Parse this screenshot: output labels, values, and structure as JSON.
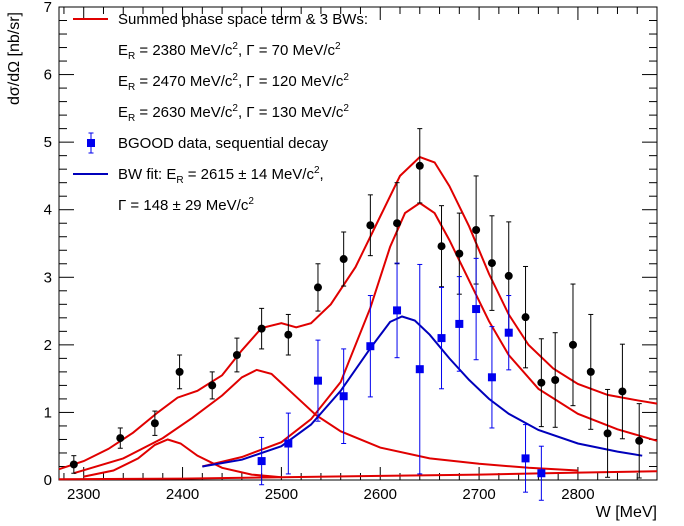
{
  "chart_data": {
    "type": "scatter",
    "xlabel": "W [MeV]",
    "ylabel": "dσ/dΩ [nb/sr]",
    "xlim": [
      2275,
      2880
    ],
    "ylim": [
      0,
      7
    ],
    "x_ticks": [
      2300,
      2400,
      2500,
      2600,
      2700,
      2800
    ],
    "y_ticks": [
      0,
      1,
      2,
      3,
      4,
      5,
      6,
      7
    ],
    "grid": false,
    "legend_position": "top-left",
    "legend": [
      {
        "kind": "line",
        "color": "#e00000",
        "lines": [
          {
            "text": "Summed phase space term & 3 BWs:"
          },
          {
            "text": "E",
            "sub": "R",
            "rest": " = 2380 MeV/c",
            "sup": "2",
            "tail": ", Γ = 70 MeV/c",
            "sup2": "2"
          },
          {
            "text": "E",
            "sub": "R",
            "rest": " = 2470 MeV/c",
            "sup": "2",
            "tail": ", Γ = 120 MeV/c",
            "sup2": "2"
          },
          {
            "text": "E",
            "sub": "R",
            "rest": " = 2630 MeV/c",
            "sup": "2",
            "tail": ", Γ = 130 MeV/c",
            "sup2": "2"
          }
        ]
      },
      {
        "kind": "marker",
        "color": "#0000ee",
        "lines": [
          {
            "text": "BGOOD data, sequential decay"
          }
        ]
      },
      {
        "kind": "line",
        "color": "#0000bb",
        "lines": [
          {
            "text": "BW fit: E",
            "sub": "R",
            "rest": " = 2615 ± 14 MeV/c",
            "sup": "2",
            "tail": ",",
            "sup2": ""
          },
          {
            "text": "Γ = 148 ± 29 MeV/c",
            "sup": "2"
          }
        ]
      }
    ],
    "series": [
      {
        "kind": "points",
        "color": "#000000",
        "marker": "circle",
        "points": [
          {
            "x": 2290,
            "y": 0.23,
            "err": 0.13
          },
          {
            "x": 2337,
            "y": 0.62,
            "err": 0.15
          },
          {
            "x": 2372,
            "y": 0.84,
            "err": 0.18
          },
          {
            "x": 2397,
            "y": 1.6,
            "err": 0.25
          },
          {
            "x": 2430,
            "y": 1.4,
            "err": 0.2
          },
          {
            "x": 2455,
            "y": 1.85,
            "err": 0.25
          },
          {
            "x": 2480,
            "y": 2.24,
            "err": 0.3
          },
          {
            "x": 2507,
            "y": 2.15,
            "err": 0.3
          },
          {
            "x": 2537,
            "y": 2.85,
            "err": 0.35
          },
          {
            "x": 2563,
            "y": 3.27,
            "err": 0.4
          },
          {
            "x": 2590,
            "y": 3.77,
            "err": 0.45
          },
          {
            "x": 2617,
            "y": 3.8,
            "err": 0.6
          },
          {
            "x": 2640,
            "y": 4.65,
            "err": 0.55
          },
          {
            "x": 2662,
            "y": 3.46,
            "err": 0.6
          },
          {
            "x": 2680,
            "y": 3.35,
            "err": 0.6
          },
          {
            "x": 2697,
            "y": 3.7,
            "err": 0.8
          },
          {
            "x": 2713,
            "y": 3.21,
            "err": 0.7
          },
          {
            "x": 2730,
            "y": 3.02,
            "err": 0.8
          },
          {
            "x": 2747,
            "y": 2.41,
            "err": 0.75
          },
          {
            "x": 2763,
            "y": 1.44,
            "err": 0.65
          },
          {
            "x": 2777,
            "y": 1.48,
            "err": 0.7
          },
          {
            "x": 2795,
            "y": 2.0,
            "err": 0.9
          },
          {
            "x": 2813,
            "y": 1.6,
            "err": 0.85
          },
          {
            "x": 2830,
            "y": 0.69,
            "err": 0.65
          },
          {
            "x": 2845,
            "y": 1.31,
            "err": 0.7
          },
          {
            "x": 2862,
            "y": 0.58,
            "err": 0.55
          }
        ]
      },
      {
        "kind": "points",
        "color": "#0000ee",
        "marker": "square",
        "points": [
          {
            "x": 2480,
            "y": 0.28,
            "err": 0.35
          },
          {
            "x": 2507,
            "y": 0.54,
            "err": 0.45
          },
          {
            "x": 2537,
            "y": 1.47,
            "err": 0.6
          },
          {
            "x": 2563,
            "y": 1.24,
            "err": 0.7
          },
          {
            "x": 2590,
            "y": 1.98,
            "err": 0.75
          },
          {
            "x": 2617,
            "y": 2.51,
            "err": 0.7
          },
          {
            "x": 2640,
            "y": 1.64,
            "err": 1.55
          },
          {
            "x": 2662,
            "y": 2.1,
            "err": 0.75
          },
          {
            "x": 2680,
            "y": 2.31,
            "err": 0.7
          },
          {
            "x": 2697,
            "y": 2.53,
            "err": 0.75
          },
          {
            "x": 2713,
            "y": 1.52,
            "err": 0.75
          },
          {
            "x": 2730,
            "y": 2.18,
            "err": 0.55
          },
          {
            "x": 2747,
            "y": 0.32,
            "err": 0.5
          },
          {
            "x": 2763,
            "y": 0.1,
            "err": 0.4
          }
        ]
      },
      {
        "kind": "curve",
        "color": "#e00000",
        "points": [
          [
            2275,
            0.16
          ],
          [
            2300,
            0.28
          ],
          [
            2325,
            0.46
          ],
          [
            2350,
            0.7
          ],
          [
            2375,
            1.0
          ],
          [
            2395,
            1.22
          ],
          [
            2415,
            1.32
          ],
          [
            2440,
            1.55
          ],
          [
            2460,
            1.92
          ],
          [
            2480,
            2.25
          ],
          [
            2500,
            2.32
          ],
          [
            2515,
            2.26
          ],
          [
            2530,
            2.32
          ],
          [
            2550,
            2.6
          ],
          [
            2575,
            3.15
          ],
          [
            2600,
            3.9
          ],
          [
            2620,
            4.5
          ],
          [
            2640,
            4.78
          ],
          [
            2655,
            4.7
          ],
          [
            2670,
            4.35
          ],
          [
            2690,
            3.75
          ],
          [
            2710,
            3.05
          ],
          [
            2730,
            2.45
          ],
          [
            2750,
            2.0
          ],
          [
            2775,
            1.65
          ],
          [
            2800,
            1.42
          ],
          [
            2830,
            1.26
          ],
          [
            2860,
            1.18
          ],
          [
            2880,
            1.13
          ]
        ]
      },
      {
        "kind": "curve",
        "color": "#e00000",
        "points": [
          [
            2300,
            0.05
          ],
          [
            2330,
            0.14
          ],
          [
            2355,
            0.32
          ],
          [
            2372,
            0.52
          ],
          [
            2385,
            0.6
          ],
          [
            2398,
            0.54
          ],
          [
            2415,
            0.36
          ],
          [
            2440,
            0.18
          ],
          [
            2470,
            0.08
          ],
          [
            2500,
            0.04
          ]
        ]
      },
      {
        "kind": "curve",
        "color": "#e00000",
        "points": [
          [
            2290,
            0.1
          ],
          [
            2340,
            0.32
          ],
          [
            2380,
            0.62
          ],
          [
            2410,
            0.92
          ],
          [
            2440,
            1.25
          ],
          [
            2460,
            1.52
          ],
          [
            2475,
            1.63
          ],
          [
            2490,
            1.57
          ],
          [
            2510,
            1.3
          ],
          [
            2535,
            0.96
          ],
          [
            2560,
            0.72
          ],
          [
            2600,
            0.48
          ],
          [
            2650,
            0.32
          ],
          [
            2700,
            0.24
          ],
          [
            2750,
            0.18
          ],
          [
            2800,
            0.14
          ]
        ]
      },
      {
        "kind": "curve",
        "color": "#e00000",
        "points": [
          [
            2420,
            0.2
          ],
          [
            2460,
            0.34
          ],
          [
            2500,
            0.56
          ],
          [
            2530,
            0.9
          ],
          [
            2560,
            1.45
          ],
          [
            2590,
            2.55
          ],
          [
            2610,
            3.45
          ],
          [
            2625,
            3.95
          ],
          [
            2640,
            4.1
          ],
          [
            2655,
            3.95
          ],
          [
            2670,
            3.55
          ],
          [
            2690,
            2.95
          ],
          [
            2710,
            2.35
          ],
          [
            2730,
            1.85
          ],
          [
            2760,
            1.35
          ],
          [
            2800,
            0.98
          ],
          [
            2840,
            0.75
          ],
          [
            2880,
            0.58
          ]
        ]
      },
      {
        "kind": "curve",
        "color": "#0000bb",
        "points": [
          [
            2420,
            0.2
          ],
          [
            2460,
            0.3
          ],
          [
            2500,
            0.5
          ],
          [
            2530,
            0.82
          ],
          [
            2560,
            1.32
          ],
          [
            2590,
            1.95
          ],
          [
            2610,
            2.34
          ],
          [
            2622,
            2.42
          ],
          [
            2635,
            2.36
          ],
          [
            2650,
            2.15
          ],
          [
            2670,
            1.8
          ],
          [
            2690,
            1.48
          ],
          [
            2710,
            1.2
          ],
          [
            2730,
            0.98
          ],
          [
            2760,
            0.74
          ],
          [
            2800,
            0.54
          ],
          [
            2840,
            0.42
          ],
          [
            2865,
            0.36
          ]
        ]
      },
      {
        "kind": "curve",
        "color": "#e00000",
        "points": [
          [
            2275,
            0.01
          ],
          [
            2400,
            0.02
          ],
          [
            2500,
            0.04
          ],
          [
            2600,
            0.06
          ],
          [
            2700,
            0.08
          ],
          [
            2800,
            0.11
          ],
          [
            2880,
            0.13
          ]
        ]
      }
    ]
  }
}
